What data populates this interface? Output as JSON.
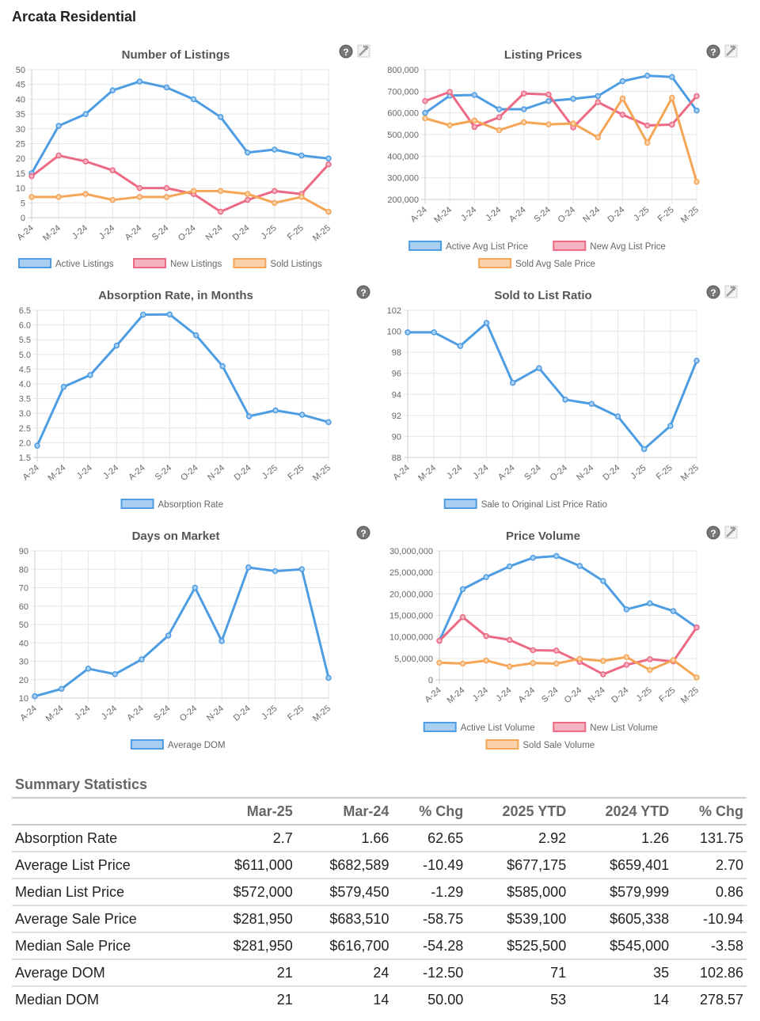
{
  "page_title": "Arcata Residential",
  "icons": {
    "help": "help-question-icon",
    "options": "chart-settings-icon"
  },
  "colors": {
    "blue": "#4e9de3",
    "red": "#ec6a84",
    "orange": "#f4a556"
  },
  "chart_data": [
    {
      "type": "line",
      "title": "Number of Listings",
      "categories": [
        "A-24",
        "M-24",
        "J-24",
        "J-24",
        "A-24",
        "S-24",
        "O-24",
        "N-24",
        "D-24",
        "J-25",
        "F-25",
        "M-25"
      ],
      "ylim": [
        0,
        50
      ],
      "yticks": [
        "0",
        "5",
        "10",
        "15",
        "20",
        "25",
        "30",
        "35",
        "40",
        "45",
        "50"
      ],
      "series": [
        {
          "name": "Active Listings",
          "color": "blue",
          "values": [
            15,
            31,
            35,
            43,
            46,
            44,
            40,
            34,
            22,
            23,
            21,
            20
          ]
        },
        {
          "name": "New Listings",
          "color": "red",
          "values": [
            14,
            21,
            19,
            16,
            10,
            10,
            8,
            2,
            6,
            9,
            8,
            18
          ]
        },
        {
          "name": "Sold Listings",
          "color": "orange",
          "values": [
            7,
            7,
            8,
            6,
            7,
            7,
            9,
            9,
            8,
            5,
            7,
            2
          ]
        }
      ]
    },
    {
      "type": "line",
      "title": "Listing Prices",
      "categories": [
        "A-24",
        "M-24",
        "J-24",
        "J-24",
        "A-24",
        "S-24",
        "O-24",
        "N-24",
        "D-24",
        "J-25",
        "F-25",
        "M-25"
      ],
      "ylim": [
        200000,
        800000
      ],
      "yticks": [
        "200,000",
        "300,000",
        "400,000",
        "500,000",
        "600,000",
        "700,000",
        "800,000"
      ],
      "series": [
        {
          "name": "Active Avg List Price",
          "color": "blue",
          "values": [
            600000,
            680000,
            683000,
            617000,
            617000,
            655000,
            665000,
            678000,
            747000,
            772000,
            766000,
            611000
          ]
        },
        {
          "name": "New Avg List Price",
          "color": "red",
          "values": [
            655000,
            697000,
            535000,
            580000,
            690000,
            685000,
            533000,
            650000,
            592000,
            542000,
            546000,
            678000
          ]
        },
        {
          "name": "Sold Avg Sale Price",
          "color": "orange",
          "values": [
            575000,
            543000,
            565000,
            520000,
            557000,
            547000,
            551000,
            487000,
            667000,
            462000,
            670000,
            281950
          ]
        }
      ]
    },
    {
      "type": "line",
      "title": "Absorption Rate, in Months",
      "categories": [
        "A-24",
        "M-24",
        "J-24",
        "J-24",
        "A-24",
        "S-24",
        "O-24",
        "N-24",
        "D-24",
        "J-25",
        "F-25",
        "M-25"
      ],
      "ylim": [
        1.5,
        6.5
      ],
      "yticks": [
        "1.5",
        "2.0",
        "2.5",
        "3.0",
        "3.5",
        "4.0",
        "4.5",
        "5.0",
        "5.5",
        "6.0",
        "6.5"
      ],
      "series": [
        {
          "name": "Absorption Rate",
          "color": "blue",
          "values": [
            1.9,
            3.9,
            4.3,
            5.3,
            6.35,
            6.36,
            5.65,
            4.6,
            2.9,
            3.1,
            2.95,
            2.7
          ]
        }
      ]
    },
    {
      "type": "line",
      "title": "Sold to List Ratio",
      "categories": [
        "A-24",
        "M-24",
        "J-24",
        "J-24",
        "A-24",
        "S-24",
        "O-24",
        "N-24",
        "D-24",
        "J-25",
        "F-25",
        "M-25"
      ],
      "ylim": [
        88,
        102
      ],
      "yticks": [
        "88",
        "90",
        "92",
        "94",
        "96",
        "98",
        "100",
        "102"
      ],
      "series": [
        {
          "name": "Sale to Original List Price Ratio",
          "color": "blue",
          "values": [
            99.9,
            99.9,
            98.6,
            100.8,
            95.1,
            96.5,
            93.5,
            93.1,
            91.9,
            88.8,
            91.0,
            97.2
          ]
        }
      ]
    },
    {
      "type": "line",
      "title": "Days on Market",
      "categories": [
        "A-24",
        "M-24",
        "J-24",
        "J-24",
        "A-24",
        "S-24",
        "O-24",
        "N-24",
        "D-24",
        "J-25",
        "F-25",
        "M-25"
      ],
      "ylim": [
        10,
        90
      ],
      "yticks": [
        "10",
        "20",
        "30",
        "40",
        "50",
        "60",
        "70",
        "80",
        "90"
      ],
      "series": [
        {
          "name": "Average DOM",
          "color": "blue",
          "values": [
            11,
            15,
            26,
            23,
            31,
            44,
            70,
            41,
            81,
            79,
            80,
            21
          ]
        }
      ]
    },
    {
      "type": "line",
      "title": "Price Volume",
      "categories": [
        "A-24",
        "M-24",
        "J-24",
        "J-24",
        "A-24",
        "S-24",
        "O-24",
        "N-24",
        "D-24",
        "J-25",
        "F-25",
        "M-25"
      ],
      "ylim": [
        0,
        30000000
      ],
      "yticks": [
        "0",
        "5,000,000",
        "10,000,000",
        "15,000,000",
        "20,000,000",
        "25,000,000",
        "30,000,000"
      ],
      "series": [
        {
          "name": "Active List Volume",
          "color": "blue",
          "values": [
            9100000,
            21100000,
            23900000,
            26400000,
            28400000,
            28800000,
            26500000,
            23000000,
            16400000,
            17800000,
            16000000,
            12200000
          ]
        },
        {
          "name": "New List Volume",
          "color": "red",
          "values": [
            9100000,
            14600000,
            10200000,
            9300000,
            6900000,
            6800000,
            4200000,
            1300000,
            3500000,
            4800000,
            4300000,
            12200000
          ]
        },
        {
          "name": "Sold Sale Volume",
          "color": "orange",
          "values": [
            4000000,
            3800000,
            4500000,
            3100000,
            3900000,
            3800000,
            4900000,
            4400000,
            5300000,
            2300000,
            4600000,
            560000
          ]
        }
      ]
    }
  ],
  "summary": {
    "title": "Summary Statistics",
    "headers": [
      "",
      "Mar-25",
      "Mar-24",
      "% Chg",
      "2025 YTD",
      "2024 YTD",
      "% Chg"
    ],
    "rows": [
      [
        "Absorption Rate",
        "2.7",
        "1.66",
        "62.65",
        "2.92",
        "1.26",
        "131.75"
      ],
      [
        "Average List Price",
        "$611,000",
        "$682,589",
        "-10.49",
        "$677,175",
        "$659,401",
        "2.70"
      ],
      [
        "Median List Price",
        "$572,000",
        "$579,450",
        "-1.29",
        "$585,000",
        "$579,999",
        "0.86"
      ],
      [
        "Average Sale Price",
        "$281,950",
        "$683,510",
        "-58.75",
        "$539,100",
        "$605,338",
        "-10.94"
      ],
      [
        "Median Sale Price",
        "$281,950",
        "$616,700",
        "-54.28",
        "$525,500",
        "$545,000",
        "-3.58"
      ],
      [
        "Average DOM",
        "21",
        "24",
        "-12.50",
        "71",
        "35",
        "102.86"
      ],
      [
        "Median DOM",
        "21",
        "14",
        "50.00",
        "53",
        "14",
        "278.57"
      ]
    ]
  }
}
